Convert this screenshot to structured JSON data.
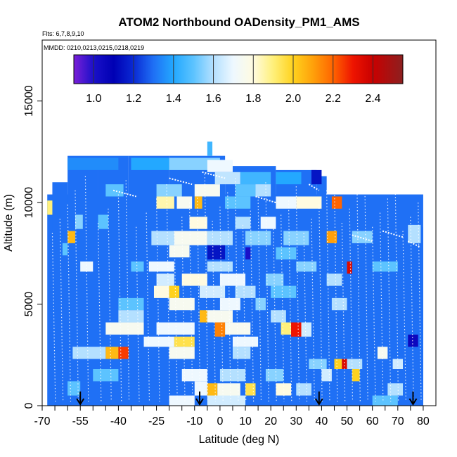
{
  "chart_data": {
    "type": "heatmap",
    "title": "ATOM2 Northbound OADensity_PM1_AMS",
    "flights_note": "Flts: 6,7,8,9,10",
    "dates_note": "MMDD: 0210,0213,0215,0218,0219",
    "xlabel": "Latitude (deg N)",
    "ylabel": "Altitude (m)",
    "xlim": [
      -70,
      85
    ],
    "ylim": [
      0,
      18000
    ],
    "x_ticks": [
      -70,
      -55,
      -40,
      -25,
      -10,
      0,
      10,
      20,
      30,
      40,
      50,
      60,
      70,
      80
    ],
    "x_tick_labels": [
      "-70",
      "-55",
      "-40",
      "-25",
      "-10",
      "0",
      "10",
      "20",
      "30",
      "40",
      "50",
      "60",
      "70",
      "80"
    ],
    "x_minor_ticks": [
      -65,
      -60,
      -50,
      -45,
      -35,
      -30,
      -20,
      -15,
      -5,
      5,
      15,
      25,
      35,
      45,
      55,
      65,
      75
    ],
    "y_ticks": [
      0,
      5000,
      10000,
      15000
    ],
    "y_tick_labels": [
      "0",
      "5000",
      "10000",
      "15000"
    ],
    "colorbar": {
      "range": [
        0.9,
        2.55
      ],
      "ticks": [
        1.0,
        1.2,
        1.4,
        1.6,
        1.8,
        2.0,
        2.2,
        2.4
      ],
      "tick_labels": [
        "1.0",
        "1.2",
        "1.4",
        "1.6",
        "1.8",
        "2.0",
        "2.2",
        "2.4"
      ],
      "stops": [
        {
          "value": 0.9,
          "color": "#7a1fd8"
        },
        {
          "value": 1.0,
          "color": "#1a10c8"
        },
        {
          "value": 1.1,
          "color": "#0000b4"
        },
        {
          "value": 1.2,
          "color": "#0a2ad4"
        },
        {
          "value": 1.3,
          "color": "#1f70f5"
        },
        {
          "value": 1.4,
          "color": "#23a8ff"
        },
        {
          "value": 1.5,
          "color": "#5cc3ff"
        },
        {
          "value": 1.6,
          "color": "#b4e0ff"
        },
        {
          "value": 1.7,
          "color": "#eef8ff"
        },
        {
          "value": 1.8,
          "color": "#fffbe0"
        },
        {
          "value": 1.9,
          "color": "#fff07a"
        },
        {
          "value": 2.0,
          "color": "#ffd21e"
        },
        {
          "value": 2.1,
          "color": "#ffa00a"
        },
        {
          "value": 2.2,
          "color": "#ff6400"
        },
        {
          "value": 2.3,
          "color": "#ee1400"
        },
        {
          "value": 2.4,
          "color": "#c80000"
        },
        {
          "value": 2.55,
          "color": "#8c2020"
        }
      ]
    },
    "background_value": 1.3,
    "arrow_latitudes": [
      -55,
      -8,
      39,
      76
    ],
    "cells": [
      {
        "lat": [
          -60,
          -40
        ],
        "alt": [
          11600,
          12200
        ],
        "v": 1.35
      },
      {
        "lat": [
          -35,
          -20
        ],
        "alt": [
          11600,
          12200
        ],
        "v": 1.4
      },
      {
        "lat": [
          -20,
          0
        ],
        "alt": [
          11600,
          12200
        ],
        "v": 1.55
      },
      {
        "lat": [
          -5,
          5
        ],
        "alt": [
          11500,
          12100
        ],
        "v": 1.7
      },
      {
        "lat": [
          -2,
          8
        ],
        "alt": [
          10900,
          11500
        ],
        "v": 1.62
      },
      {
        "lat": [
          8,
          20
        ],
        "alt": [
          10900,
          11500
        ],
        "v": 1.45
      },
      {
        "lat": [
          22,
          32
        ],
        "alt": [
          10900,
          11500
        ],
        "v": 1.4
      },
      {
        "lat": [
          36,
          40
        ],
        "alt": [
          10900,
          11600
        ],
        "v": 1.15
      },
      {
        "lat": [
          -25,
          -15
        ],
        "alt": [
          10300,
          10900
        ],
        "v": 1.55
      },
      {
        "lat": [
          -10,
          0
        ],
        "alt": [
          10300,
          10900
        ],
        "v": 1.75
      },
      {
        "lat": [
          6,
          14
        ],
        "alt": [
          10300,
          10900
        ],
        "v": 1.5
      },
      {
        "lat": [
          14,
          20
        ],
        "alt": [
          10300,
          10900
        ],
        "v": 1.6
      },
      {
        "lat": [
          -45,
          -38
        ],
        "alt": [
          10300,
          10900
        ],
        "v": 1.5
      },
      {
        "lat": [
          -25,
          -18
        ],
        "alt": [
          9700,
          10300
        ],
        "v": 1.85
      },
      {
        "lat": [
          -17,
          -11
        ],
        "alt": [
          9700,
          10300
        ],
        "v": 1.75
      },
      {
        "lat": [
          -10,
          -7
        ],
        "alt": [
          9700,
          10300
        ],
        "v": 2.05
      },
      {
        "lat": [
          2,
          12
        ],
        "alt": [
          9700,
          10300
        ],
        "v": 1.5
      },
      {
        "lat": [
          22,
          30
        ],
        "alt": [
          9700,
          10300
        ],
        "v": 1.7
      },
      {
        "lat": [
          30,
          40
        ],
        "alt": [
          9700,
          10300
        ],
        "v": 1.8
      },
      {
        "lat": [
          44,
          48
        ],
        "alt": [
          9700,
          10300
        ],
        "v": 2.2
      },
      {
        "lat": [
          -68,
          -66
        ],
        "alt": [
          9400,
          10100
        ],
        "v": 1.9
      },
      {
        "lat": [
          -57,
          -54
        ],
        "alt": [
          8700,
          9400
        ],
        "v": 1.55
      },
      {
        "lat": [
          -48,
          -44
        ],
        "alt": [
          8700,
          9400
        ],
        "v": 1.5
      },
      {
        "lat": [
          -12,
          -5
        ],
        "alt": [
          8700,
          9300
        ],
        "v": 1.8
      },
      {
        "lat": [
          6,
          12
        ],
        "alt": [
          8700,
          9300
        ],
        "v": 1.6
      },
      {
        "lat": [
          16,
          22
        ],
        "alt": [
          8700,
          9300
        ],
        "v": 1.7
      },
      {
        "lat": [
          -60,
          -57
        ],
        "alt": [
          8000,
          8600
        ],
        "v": 2.05
      },
      {
        "lat": [
          -27,
          -18
        ],
        "alt": [
          7900,
          8600
        ],
        "v": 1.6
      },
      {
        "lat": [
          -18,
          -5
        ],
        "alt": [
          7900,
          8600
        ],
        "v": 1.75
      },
      {
        "lat": [
          -5,
          5
        ],
        "alt": [
          7900,
          8600
        ],
        "v": 1.6
      },
      {
        "lat": [
          10,
          20
        ],
        "alt": [
          7900,
          8600
        ],
        "v": 1.55
      },
      {
        "lat": [
          25,
          35
        ],
        "alt": [
          7900,
          8600
        ],
        "v": 1.55
      },
      {
        "lat": [
          42,
          46
        ],
        "alt": [
          8000,
          8600
        ],
        "v": 2.1
      },
      {
        "lat": [
          52,
          60
        ],
        "alt": [
          8000,
          8600
        ],
        "v": 1.55
      },
      {
        "lat": [
          74,
          79
        ],
        "alt": [
          8000,
          8900
        ],
        "v": 1.6
      },
      {
        "lat": [
          -62,
          -60
        ],
        "alt": [
          7400,
          8000
        ],
        "v": 1.5
      },
      {
        "lat": [
          -20,
          -12
        ],
        "alt": [
          7300,
          7900
        ],
        "v": 1.75
      },
      {
        "lat": [
          -5,
          2
        ],
        "alt": [
          7200,
          7900
        ],
        "v": 1.15
      },
      {
        "lat": [
          10,
          12
        ],
        "alt": [
          7200,
          7800
        ],
        "v": 1.0
      },
      {
        "lat": [
          22,
          30
        ],
        "alt": [
          7200,
          7800
        ],
        "v": 1.5
      },
      {
        "lat": [
          -55,
          -50
        ],
        "alt": [
          6600,
          7100
        ],
        "v": 1.7
      },
      {
        "lat": [
          -35,
          -30
        ],
        "alt": [
          6600,
          7100
        ],
        "v": 1.5
      },
      {
        "lat": [
          -28,
          -18
        ],
        "alt": [
          6600,
          7100
        ],
        "v": 1.7
      },
      {
        "lat": [
          -5,
          5
        ],
        "alt": [
          6600,
          7100
        ],
        "v": 1.6
      },
      {
        "lat": [
          30,
          38
        ],
        "alt": [
          6600,
          7100
        ],
        "v": 1.55
      },
      {
        "lat": [
          50,
          52
        ],
        "alt": [
          6500,
          7100
        ],
        "v": 2.35
      },
      {
        "lat": [
          60,
          70
        ],
        "alt": [
          6600,
          7100
        ],
        "v": 1.5
      },
      {
        "lat": [
          -25,
          -18
        ],
        "alt": [
          5900,
          6500
        ],
        "v": 1.65
      },
      {
        "lat": [
          -15,
          -5
        ],
        "alt": [
          5900,
          6500
        ],
        "v": 1.8
      },
      {
        "lat": [
          0,
          10
        ],
        "alt": [
          5900,
          6500
        ],
        "v": 1.7
      },
      {
        "lat": [
          18,
          25
        ],
        "alt": [
          5900,
          6500
        ],
        "v": 1.55
      },
      {
        "lat": [
          42,
          48
        ],
        "alt": [
          5900,
          6500
        ],
        "v": 1.6
      },
      {
        "lat": [
          -26,
          -20
        ],
        "alt": [
          5300,
          5900
        ],
        "v": 1.8
      },
      {
        "lat": [
          -20,
          -16
        ],
        "alt": [
          5300,
          5900
        ],
        "v": 2.0
      },
      {
        "lat": [
          -8,
          2
        ],
        "alt": [
          5300,
          5900
        ],
        "v": 1.65
      },
      {
        "lat": [
          6,
          14
        ],
        "alt": [
          5300,
          5900
        ],
        "v": 1.6
      },
      {
        "lat": [
          20,
          30
        ],
        "alt": [
          5300,
          5900
        ],
        "v": 1.5
      },
      {
        "lat": [
          -40,
          -30
        ],
        "alt": [
          4700,
          5300
        ],
        "v": 1.5
      },
      {
        "lat": [
          -20,
          -10
        ],
        "alt": [
          4700,
          5300
        ],
        "v": 1.75
      },
      {
        "lat": [
          0,
          8
        ],
        "alt": [
          4700,
          5300
        ],
        "v": 1.7
      },
      {
        "lat": [
          14,
          18
        ],
        "alt": [
          4700,
          5300
        ],
        "v": 1.55
      },
      {
        "lat": [
          44,
          50
        ],
        "alt": [
          4700,
          5300
        ],
        "v": 1.6
      },
      {
        "lat": [
          -40,
          -30
        ],
        "alt": [
          4100,
          4700
        ],
        "v": 1.6
      },
      {
        "lat": [
          -8,
          -5
        ],
        "alt": [
          4100,
          4700
        ],
        "v": 2.05
      },
      {
        "lat": [
          -5,
          5
        ],
        "alt": [
          4100,
          4700
        ],
        "v": 1.75
      },
      {
        "lat": [
          20,
          26
        ],
        "alt": [
          4100,
          4700
        ],
        "v": 1.6
      },
      {
        "lat": [
          -45,
          -30
        ],
        "alt": [
          3500,
          4100
        ],
        "v": 1.75
      },
      {
        "lat": [
          -25,
          -10
        ],
        "alt": [
          3500,
          4100
        ],
        "v": 1.7
      },
      {
        "lat": [
          -2,
          2
        ],
        "alt": [
          3400,
          4100
        ],
        "v": 2.15
      },
      {
        "lat": [
          2,
          12
        ],
        "alt": [
          3500,
          4100
        ],
        "v": 1.75
      },
      {
        "lat": [
          24,
          28
        ],
        "alt": [
          3500,
          4100
        ],
        "v": 1.9
      },
      {
        "lat": [
          28,
          32
        ],
        "alt": [
          3400,
          4100
        ],
        "v": 2.3
      },
      {
        "lat": [
          32,
          36
        ],
        "alt": [
          3400,
          4100
        ],
        "v": 1.65
      },
      {
        "lat": [
          -30,
          -18
        ],
        "alt": [
          2900,
          3400
        ],
        "v": 1.7
      },
      {
        "lat": [
          -18,
          -10
        ],
        "alt": [
          2900,
          3400
        ],
        "v": 1.95
      },
      {
        "lat": [
          5,
          15
        ],
        "alt": [
          2900,
          3400
        ],
        "v": 1.7
      },
      {
        "lat": [
          74,
          78
        ],
        "alt": [
          2900,
          3500
        ],
        "v": 1.05
      },
      {
        "lat": [
          -58,
          -45
        ],
        "alt": [
          2300,
          2900
        ],
        "v": 1.6
      },
      {
        "lat": [
          -45,
          -40
        ],
        "alt": [
          2300,
          2900
        ],
        "v": 2.05
      },
      {
        "lat": [
          -40,
          -36
        ],
        "alt": [
          2300,
          2900
        ],
        "v": 2.25
      },
      {
        "lat": [
          -20,
          -10
        ],
        "alt": [
          2300,
          2900
        ],
        "v": 1.75
      },
      {
        "lat": [
          5,
          12
        ],
        "alt": [
          2300,
          2900
        ],
        "v": 1.6
      },
      {
        "lat": [
          62,
          66
        ],
        "alt": [
          2300,
          2900
        ],
        "v": 1.75
      },
      {
        "lat": [
          35,
          42
        ],
        "alt": [
          1800,
          2300
        ],
        "v": 1.55
      },
      {
        "lat": [
          45,
          48
        ],
        "alt": [
          1800,
          2300
        ],
        "v": 2.0
      },
      {
        "lat": [
          48,
          50
        ],
        "alt": [
          1800,
          2300
        ],
        "v": 2.35
      },
      {
        "lat": [
          50,
          56
        ],
        "alt": [
          1800,
          2300
        ],
        "v": 1.6
      },
      {
        "lat": [
          68,
          72
        ],
        "alt": [
          1800,
          2300
        ],
        "v": 1.65
      },
      {
        "lat": [
          -50,
          -40
        ],
        "alt": [
          1200,
          1800
        ],
        "v": 1.5
      },
      {
        "lat": [
          -15,
          -5
        ],
        "alt": [
          1200,
          1800
        ],
        "v": 1.7
      },
      {
        "lat": [
          0,
          10
        ],
        "alt": [
          1200,
          1800
        ],
        "v": 1.6
      },
      {
        "lat": [
          18,
          25
        ],
        "alt": [
          1200,
          1800
        ],
        "v": 1.55
      },
      {
        "lat": [
          40,
          44
        ],
        "alt": [
          1200,
          1800
        ],
        "v": 1.65
      },
      {
        "lat": [
          52,
          55
        ],
        "alt": [
          1200,
          1800
        ],
        "v": 2.0
      },
      {
        "lat": [
          -60,
          -55
        ],
        "alt": [
          500,
          1200
        ],
        "v": 1.5
      },
      {
        "lat": [
          -10,
          -5
        ],
        "alt": [
          500,
          1200
        ],
        "v": 1.7
      },
      {
        "lat": [
          -5,
          -1
        ],
        "alt": [
          400,
          1100
        ],
        "v": 2.05
      },
      {
        "lat": [
          -1,
          8
        ],
        "alt": [
          400,
          1100
        ],
        "v": 1.75
      },
      {
        "lat": [
          10,
          14
        ],
        "alt": [
          500,
          1100
        ],
        "v": 1.95
      },
      {
        "lat": [
          22,
          28
        ],
        "alt": [
          500,
          1100
        ],
        "v": 1.8
      },
      {
        "lat": [
          30,
          36
        ],
        "alt": [
          500,
          1100
        ],
        "v": 1.6
      },
      {
        "lat": [
          66,
          72
        ],
        "alt": [
          500,
          1100
        ],
        "v": 1.6
      },
      {
        "lat": [
          -20,
          -10
        ],
        "alt": [
          0,
          500
        ],
        "v": 1.7
      },
      {
        "lat": [
          -5,
          10
        ],
        "alt": [
          0,
          500
        ],
        "v": 1.65
      },
      {
        "lat": [
          60,
          70
        ],
        "alt": [
          0,
          500
        ],
        "v": 1.5
      }
    ]
  }
}
